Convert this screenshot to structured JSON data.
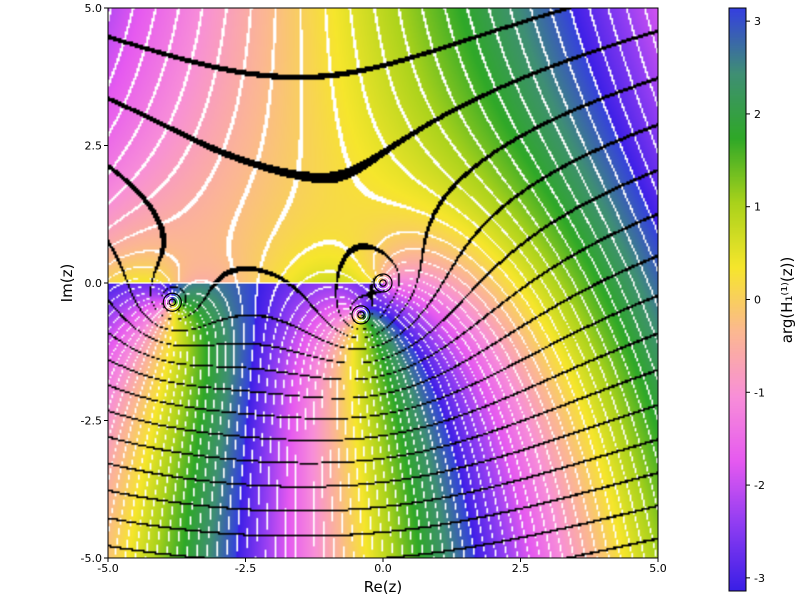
{
  "chart_data": {
    "type": "heatmap",
    "title": "",
    "xlabel": "Re(z)",
    "ylabel": "Im(z)",
    "xlim": [
      -5.0,
      5.0
    ],
    "ylim": [
      -5.0,
      5.0
    ],
    "x_ticks": [
      "-5.0",
      "-2.5",
      "0.0",
      "2.5",
      "5.0"
    ],
    "y_ticks": [
      "-5.0",
      "-2.5",
      "0.0",
      "2.5",
      "5.0"
    ],
    "colorbar": {
      "label": "arg(H₁⁽¹⁾(z))",
      "range": [
        -3.14159,
        3.14159
      ],
      "ticks": [
        "-3",
        "-2",
        "-1",
        "0",
        "1",
        "2",
        "3"
      ],
      "colors": [
        "#3A1FE6",
        "#8E3CF2",
        "#E65AF0",
        "#F88FD8",
        "#FBB891",
        "#F6E62C",
        "#A9D21B",
        "#2FA828",
        "#3F8F74",
        "#3540DF"
      ]
    },
    "branch_cut": {
      "x_from": -5.0,
      "x_to": 0.0,
      "y": 0.0
    },
    "zeros": [
      {
        "re": 0.0,
        "im": 0.0
      },
      {
        "re": -0.4,
        "im": -0.58
      },
      {
        "re": -3.83,
        "im": -0.35
      }
    ],
    "contour_colors": {
      "modulus": "#000000",
      "phase": "#ffffff"
    },
    "grid": false
  }
}
